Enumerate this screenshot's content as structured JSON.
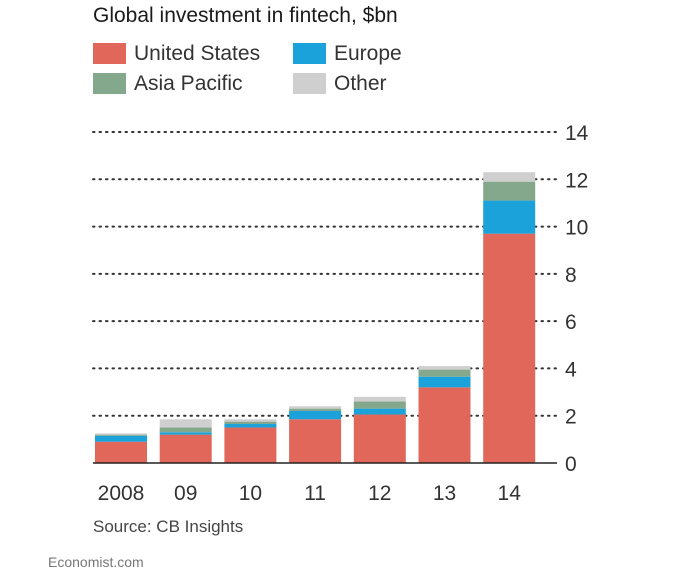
{
  "chart_data": {
    "type": "bar",
    "stacked": true,
    "title": "Global investment in fintech, $bn",
    "categories": [
      "2008",
      "09",
      "10",
      "11",
      "12",
      "13",
      "14"
    ],
    "series": [
      {
        "name": "United States",
        "color": "#e2675b",
        "values": [
          0.9,
          1.2,
          1.5,
          1.85,
          2.05,
          3.2,
          9.7
        ]
      },
      {
        "name": "Europe",
        "color": "#1ba2da",
        "values": [
          0.25,
          0.1,
          0.15,
          0.35,
          0.25,
          0.45,
          1.4
        ]
      },
      {
        "name": "Asia Pacific",
        "color": "#84a88c",
        "values": [
          0.05,
          0.2,
          0.1,
          0.1,
          0.3,
          0.3,
          0.8
        ]
      },
      {
        "name": "Other",
        "color": "#cfcfcf",
        "values": [
          0.05,
          0.35,
          0.1,
          0.1,
          0.2,
          0.15,
          0.4
        ]
      }
    ],
    "yticks": [
      0,
      2,
      4,
      6,
      8,
      10,
      12,
      14
    ],
    "ylim": [
      0,
      14
    ],
    "grid": true,
    "axis_side": "right",
    "legend": "top-left",
    "xlabel": "",
    "ylabel": ""
  },
  "source": "Source: CB Insights",
  "brand": "Economist.com"
}
